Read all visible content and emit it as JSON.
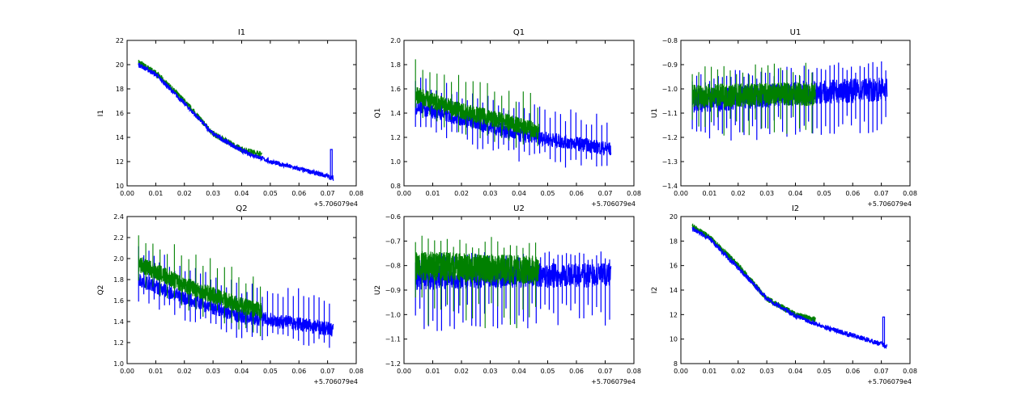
{
  "colors": {
    "blue": "#0000ff",
    "green": "#008000",
    "axes": "#000000",
    "background": "#ffffff"
  },
  "chart_data": [
    {
      "type": "line",
      "title": "I1",
      "xlabel": "",
      "ylabel": "I1",
      "x_offset_label": "+5.706079e4",
      "xlim": [
        0.0,
        0.08
      ],
      "ylim": [
        10,
        22
      ],
      "xticks": [
        "0.00",
        "0.01",
        "0.02",
        "0.03",
        "0.04",
        "0.05",
        "0.06",
        "0.07",
        "0.08"
      ],
      "yticks": [
        "10",
        "12",
        "14",
        "16",
        "18",
        "20",
        "22"
      ],
      "grid": false,
      "style": "trend",
      "series": [
        {
          "color": "#008000",
          "x_range": [
            0.004,
            0.047
          ],
          "trend": [
            [
              0.004,
              20.2
            ],
            [
              0.01,
              19.3
            ],
            [
              0.02,
              17.0
            ],
            [
              0.03,
              14.3
            ],
            [
              0.04,
              13.0
            ],
            [
              0.047,
              12.6
            ]
          ],
          "noise": 0.25,
          "spike_every": 0,
          "spike_down": 0,
          "spike_up": 0.5
        },
        {
          "color": "#0000ff",
          "x_range": [
            0.004,
            0.072
          ],
          "trend": [
            [
              0.004,
              20.0
            ],
            [
              0.01,
              19.2
            ],
            [
              0.02,
              16.8
            ],
            [
              0.03,
              14.3
            ],
            [
              0.04,
              12.9
            ],
            [
              0.05,
              12.0
            ],
            [
              0.06,
              11.4
            ],
            [
              0.07,
              10.8
            ],
            [
              0.072,
              10.6
            ]
          ],
          "noise": 0.2,
          "spike_every": 0,
          "spike_down": 0,
          "spike_up": 0.3,
          "spike_at": [
            0.071,
            13.0
          ]
        }
      ]
    },
    {
      "type": "line",
      "title": "Q1",
      "xlabel": "",
      "ylabel": "Q1",
      "x_offset_label": "+5.706079e4",
      "xlim": [
        0.0,
        0.08
      ],
      "ylim": [
        0.8,
        2.0
      ],
      "xticks": [
        "0.00",
        "0.01",
        "0.02",
        "0.03",
        "0.04",
        "0.05",
        "0.06",
        "0.07",
        "0.08"
      ],
      "yticks": [
        "0.8",
        "1.0",
        "1.2",
        "1.4",
        "1.6",
        "1.8",
        "2.0"
      ],
      "grid": false,
      "style": "spiky",
      "series": [
        {
          "color": "#0000ff",
          "x_range": [
            0.004,
            0.072
          ],
          "trend": [
            [
              0.004,
              1.45
            ],
            [
              0.02,
              1.35
            ],
            [
              0.04,
              1.22
            ],
            [
              0.06,
              1.15
            ],
            [
              0.072,
              1.1
            ]
          ],
          "noise": 0.06,
          "spike_every": 0.0018,
          "spike_up": 0.28,
          "spike_down": 0.22
        },
        {
          "color": "#008000",
          "x_range": [
            0.004,
            0.047
          ],
          "trend": [
            [
              0.004,
              1.55
            ],
            [
              0.02,
              1.42
            ],
            [
              0.04,
              1.3
            ],
            [
              0.047,
              1.25
            ]
          ],
          "noise": 0.07,
          "spike_every": 0.0025,
          "spike_up": 0.3,
          "spike_down": 0.2
        }
      ]
    },
    {
      "type": "line",
      "title": "U1",
      "xlabel": "",
      "ylabel": "U1",
      "x_offset_label": "+5.706079e4",
      "xlim": [
        0.0,
        0.08
      ],
      "ylim": [
        -1.4,
        -0.8
      ],
      "xticks": [
        "0.00",
        "0.01",
        "0.02",
        "0.03",
        "0.04",
        "0.05",
        "0.06",
        "0.07",
        "0.08"
      ],
      "yticks": [
        "-1.4",
        "-1.3",
        "-1.2",
        "-1.1",
        "-1.0",
        "-0.9",
        "-0.8"
      ],
      "grid": false,
      "style": "spiky",
      "series": [
        {
          "color": "#0000ff",
          "x_range": [
            0.004,
            0.072
          ],
          "trend": [
            [
              0.004,
              -1.05
            ],
            [
              0.04,
              -1.02
            ],
            [
              0.072,
              -1.0
            ]
          ],
          "noise": 0.05,
          "spike_every": 0.0015,
          "spike_up": 0.12,
          "spike_down": 0.18
        },
        {
          "color": "#008000",
          "x_range": [
            0.004,
            0.047
          ],
          "trend": [
            [
              0.004,
              -1.03
            ],
            [
              0.047,
              -1.02
            ]
          ],
          "noise": 0.05,
          "spike_every": 0.0022,
          "spike_up": 0.13,
          "spike_down": 0.17
        }
      ]
    },
    {
      "type": "line",
      "title": "Q2",
      "xlabel": "",
      "ylabel": "Q2",
      "x_offset_label": "+5.706079e4",
      "xlim": [
        0.0,
        0.08
      ],
      "ylim": [
        1.0,
        2.4
      ],
      "xticks": [
        "0.00",
        "0.01",
        "0.02",
        "0.03",
        "0.04",
        "0.05",
        "0.06",
        "0.07",
        "0.08"
      ],
      "yticks": [
        "1.0",
        "1.2",
        "1.4",
        "1.6",
        "1.8",
        "2.0",
        "2.2",
        "2.4"
      ],
      "grid": false,
      "style": "spiky",
      "series": [
        {
          "color": "#0000ff",
          "x_range": [
            0.004,
            0.072
          ],
          "trend": [
            [
              0.004,
              1.8
            ],
            [
              0.02,
              1.62
            ],
            [
              0.04,
              1.45
            ],
            [
              0.06,
              1.38
            ],
            [
              0.072,
              1.32
            ]
          ],
          "noise": 0.07,
          "spike_every": 0.0018,
          "spike_up": 0.35,
          "spike_down": 0.22
        },
        {
          "color": "#008000",
          "x_range": [
            0.004,
            0.047
          ],
          "trend": [
            [
              0.004,
              1.95
            ],
            [
              0.02,
              1.75
            ],
            [
              0.04,
              1.55
            ],
            [
              0.047,
              1.5
            ]
          ],
          "noise": 0.08,
          "spike_every": 0.0025,
          "spike_up": 0.35,
          "spike_down": 0.25
        }
      ]
    },
    {
      "type": "line",
      "title": "U2",
      "xlabel": "",
      "ylabel": "U2",
      "x_offset_label": "+5.706079e4",
      "xlim": [
        0.0,
        0.08
      ],
      "ylim": [
        -1.2,
        -0.6
      ],
      "xticks": [
        "0.00",
        "0.01",
        "0.02",
        "0.03",
        "0.04",
        "0.05",
        "0.06",
        "0.07",
        "0.08"
      ],
      "yticks": [
        "-1.2",
        "-1.1",
        "-1.0",
        "-0.9",
        "-0.8",
        "-0.7",
        "-0.6"
      ],
      "grid": false,
      "style": "spiky",
      "series": [
        {
          "color": "#0000ff",
          "x_range": [
            0.004,
            0.072
          ],
          "trend": [
            [
              0.004,
              -0.85
            ],
            [
              0.04,
              -0.84
            ],
            [
              0.072,
              -0.84
            ]
          ],
          "noise": 0.05,
          "spike_every": 0.0015,
          "spike_up": 0.1,
          "spike_down": 0.22
        },
        {
          "color": "#008000",
          "x_range": [
            0.004,
            0.047
          ],
          "trend": [
            [
              0.004,
              -0.8
            ],
            [
              0.047,
              -0.82
            ]
          ],
          "noise": 0.06,
          "spike_every": 0.0022,
          "spike_up": 0.13,
          "spike_down": 0.25
        }
      ]
    },
    {
      "type": "line",
      "title": "I2",
      "xlabel": "",
      "ylabel": "I2",
      "x_offset_label": "+5.706079e4",
      "xlim": [
        0.0,
        0.08
      ],
      "ylim": [
        8,
        20
      ],
      "xticks": [
        "0.00",
        "0.01",
        "0.02",
        "0.03",
        "0.04",
        "0.05",
        "0.06",
        "0.07",
        "0.08"
      ],
      "yticks": [
        "8",
        "10",
        "12",
        "14",
        "16",
        "18",
        "20"
      ],
      "grid": false,
      "style": "trend",
      "series": [
        {
          "color": "#008000",
          "x_range": [
            0.004,
            0.047
          ],
          "trend": [
            [
              0.004,
              19.2
            ],
            [
              0.01,
              18.3
            ],
            [
              0.02,
              16.0
            ],
            [
              0.03,
              13.3
            ],
            [
              0.04,
              12.0
            ],
            [
              0.047,
              11.6
            ]
          ],
          "noise": 0.25,
          "spike_every": 0,
          "spike_down": 0,
          "spike_up": 0.4
        },
        {
          "color": "#0000ff",
          "x_range": [
            0.004,
            0.072
          ],
          "trend": [
            [
              0.004,
              19.0
            ],
            [
              0.01,
              18.2
            ],
            [
              0.02,
              15.8
            ],
            [
              0.03,
              13.3
            ],
            [
              0.04,
              11.9
            ],
            [
              0.05,
              11.0
            ],
            [
              0.06,
              10.3
            ],
            [
              0.07,
              9.6
            ],
            [
              0.072,
              9.4
            ]
          ],
          "noise": 0.2,
          "spike_every": 0,
          "spike_down": 0,
          "spike_up": 0.3,
          "spike_at": [
            0.0705,
            11.8
          ]
        }
      ]
    }
  ]
}
